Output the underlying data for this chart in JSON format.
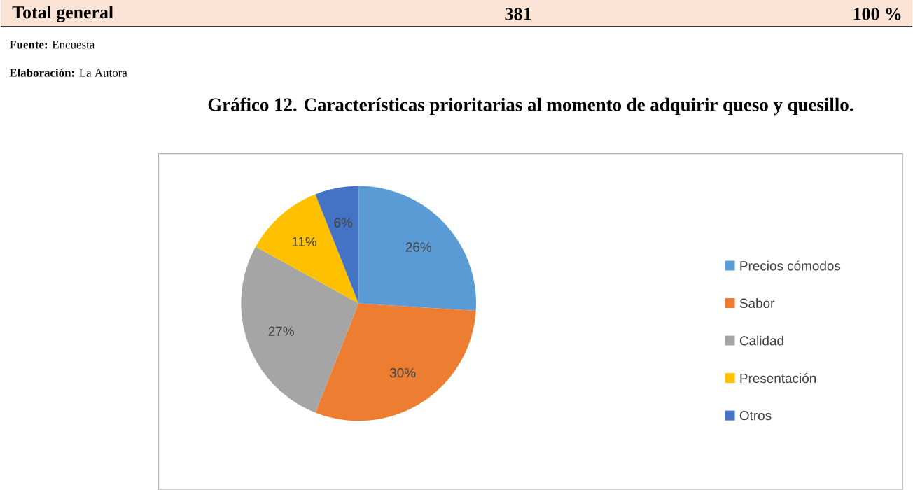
{
  "chart_data": {
    "type": "pie",
    "title": "Gráfico 12. Características prioritarias al momento de adquirir queso y quesillo.",
    "categories": [
      "Precios cómodos",
      "Sabor",
      "Calidad",
      "Presentación",
      "Otros"
    ],
    "values": [
      26,
      30,
      27,
      11,
      6
    ],
    "value_labels": [
      "26%",
      "30%",
      "27%",
      "11%",
      "6%"
    ],
    "colors": [
      "#5b9bd5",
      "#ed7d31",
      "#a5a5a5",
      "#ffc000",
      "#4472c4"
    ],
    "legend": "right",
    "annotations": [
      "Total general",
      "381",
      "100 %",
      "**Fuente:** Encuesta",
      "**Elaboración:** La Autora"
    ]
  }
}
